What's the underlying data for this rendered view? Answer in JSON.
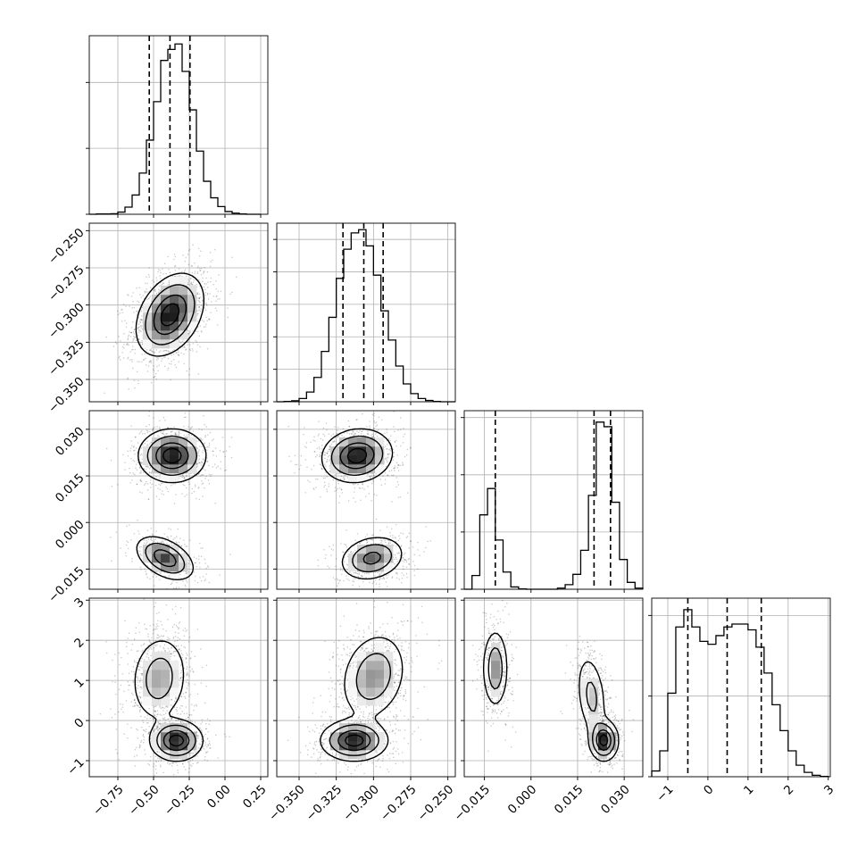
{
  "chart_data": {
    "type": "corner",
    "parameters": 4,
    "axes": [
      {
        "range": [
          -0.95,
          0.3
        ],
        "ticks": [
          -0.75,
          -0.5,
          -0.25,
          0.0,
          0.25
        ],
        "tick_labels": [
          "−0.75",
          "−0.50",
          "−0.25",
          "0.00",
          "0.25"
        ],
        "quantiles": [
          -0.53,
          -0.385,
          -0.245
        ]
      },
      {
        "range": [
          -0.365,
          -0.245
        ],
        "ticks": [
          -0.35,
          -0.325,
          -0.3,
          -0.275,
          -0.25
        ],
        "tick_labels": [
          "−0.350",
          "−0.325",
          "−0.300",
          "−0.275",
          "−0.250"
        ],
        "quantiles": [
          -0.3205,
          -0.3065,
          -0.2935
        ]
      },
      {
        "range": [
          -0.0215,
          0.036
        ],
        "ticks": [
          -0.015,
          0.0,
          0.015,
          0.03
        ],
        "tick_labels": [
          "−0.015",
          "0.000",
          "0.015",
          "0.030"
        ],
        "quantiles": [
          -0.0115,
          0.0203,
          0.0256
        ]
      },
      {
        "range": [
          -1.4,
          3.05
        ],
        "ticks": [
          -1,
          0,
          1,
          2,
          3
        ],
        "tick_labels": [
          "−1",
          "0",
          "1",
          "2",
          "3"
        ],
        "quantiles": [
          -0.5,
          0.48,
          1.33
        ]
      }
    ],
    "histograms": [
      {
        "bins": [
          -0.95,
          -0.9,
          -0.85,
          -0.8,
          -0.75,
          -0.7,
          -0.65,
          -0.6,
          -0.55,
          -0.5,
          -0.45,
          -0.4,
          -0.35,
          -0.3,
          -0.25,
          -0.2,
          -0.15,
          -0.1,
          -0.05,
          0.0,
          0.05,
          0.1,
          0.15,
          0.2,
          0.25
        ],
        "counts": [
          0,
          1,
          1,
          2,
          8,
          26,
          70,
          150,
          270,
          410,
          560,
          600,
          620,
          520,
          380,
          230,
          120,
          60,
          28,
          10,
          4,
          1,
          0,
          0
        ],
        "ymax": 650,
        "yticks": [
          0,
          240,
          480
        ]
      },
      {
        "bins": [
          -0.365,
          -0.36,
          -0.355,
          -0.35,
          -0.345,
          -0.34,
          -0.335,
          -0.33,
          -0.325,
          -0.32,
          -0.315,
          -0.31,
          -0.305,
          -0.3,
          -0.295,
          -0.29,
          -0.285,
          -0.28,
          -0.275,
          -0.27,
          -0.265,
          -0.26,
          -0.255,
          -0.25,
          -0.245
        ],
        "counts": [
          0,
          2,
          6,
          20,
          60,
          150,
          310,
          520,
          760,
          940,
          1040,
          1060,
          960,
          780,
          560,
          380,
          220,
          110,
          50,
          20,
          8,
          2,
          0,
          0
        ],
        "ymax": 1100,
        "yticks": [
          0,
          200,
          400,
          600,
          800,
          1000
        ]
      },
      {
        "bins": [
          -0.0215,
          -0.019,
          -0.0165,
          -0.014,
          -0.0115,
          -0.009,
          -0.0065,
          -0.004,
          -0.0015,
          0.001,
          0.0035,
          0.006,
          0.0085,
          0.011,
          0.0135,
          0.016,
          0.0185,
          0.021,
          0.0235,
          0.026,
          0.0285,
          0.031,
          0.0335,
          0.036
        ],
        "counts": [
          0,
          120,
          650,
          880,
          430,
          150,
          20,
          3,
          0,
          0,
          0,
          0,
          10,
          40,
          130,
          340,
          820,
          1460,
          1420,
          760,
          260,
          60,
          10
        ],
        "ymax": 1560,
        "yticks": [
          0,
          500,
          1000,
          1500
        ]
      },
      {
        "bins": [
          -1.4,
          -1.2,
          -1.0,
          -0.8,
          -0.6,
          -0.4,
          -0.2,
          0.0,
          0.2,
          0.4,
          0.6,
          0.8,
          1.0,
          1.2,
          1.4,
          1.6,
          1.8,
          2.0,
          2.2,
          2.4,
          2.6,
          2.8,
          3.0
        ],
        "counts": [
          20,
          90,
          290,
          520,
          580,
          520,
          470,
          460,
          490,
          520,
          530,
          530,
          510,
          450,
          360,
          250,
          160,
          90,
          40,
          15,
          5,
          1
        ],
        "ymax": 620,
        "yticks": [
          0,
          280,
          560
        ]
      }
    ],
    "pairs": [
      {
        "x": 0,
        "y": 1,
        "modes": [
          {
            "mx": -0.385,
            "my": -0.3065,
            "sx": 0.115,
            "sy": 0.0135,
            "rho": 0.35,
            "w": 1
          }
        ]
      },
      {
        "x": 0,
        "y": 2,
        "modes": [
          {
            "mx": -0.37,
            "my": 0.0215,
            "sx": 0.115,
            "sy": 0.0042,
            "rho": 0.0,
            "w": 0.65
          },
          {
            "mx": -0.42,
            "my": -0.0115,
            "sx": 0.1,
            "sy": 0.0035,
            "rho": -0.45,
            "w": 0.35
          }
        ]
      },
      {
        "x": 0,
        "y": 3,
        "modes": [
          {
            "mx": -0.46,
            "my": 1.05,
            "sx": 0.1,
            "sy": 0.55,
            "rho": 0.1,
            "w": 0.55
          },
          {
            "mx": -0.34,
            "my": -0.5,
            "sx": 0.09,
            "sy": 0.25,
            "rho": 0.0,
            "w": 0.45
          }
        ]
      },
      {
        "x": 1,
        "y": 2,
        "modes": [
          {
            "mx": -0.311,
            "my": 0.0215,
            "sx": 0.0115,
            "sy": 0.0042,
            "rho": 0.1,
            "w": 0.65
          },
          {
            "mx": -0.301,
            "my": -0.0115,
            "sx": 0.0105,
            "sy": 0.0035,
            "rho": 0.2,
            "w": 0.35
          }
        ]
      },
      {
        "x": 1,
        "y": 3,
        "modes": [
          {
            "mx": -0.3,
            "my": 1.1,
            "sx": 0.011,
            "sy": 0.55,
            "rho": 0.2,
            "w": 0.55
          },
          {
            "mx": -0.313,
            "my": -0.5,
            "sx": 0.011,
            "sy": 0.25,
            "rho": 0.0,
            "w": 0.45
          }
        ]
      },
      {
        "x": 2,
        "y": 3,
        "modes": [
          {
            "mx": -0.0115,
            "my": 1.3,
            "sx": 0.0021,
            "sy": 0.5,
            "rho": 0.0,
            "w": 0.35
          },
          {
            "mx": 0.0195,
            "my": 0.6,
            "sx": 0.0025,
            "sy": 0.55,
            "rho": -0.3,
            "w": 0.32
          },
          {
            "mx": 0.0235,
            "my": -0.5,
            "sx": 0.0023,
            "sy": 0.25,
            "rho": 0.0,
            "w": 0.33
          }
        ]
      }
    ],
    "grid": true
  }
}
